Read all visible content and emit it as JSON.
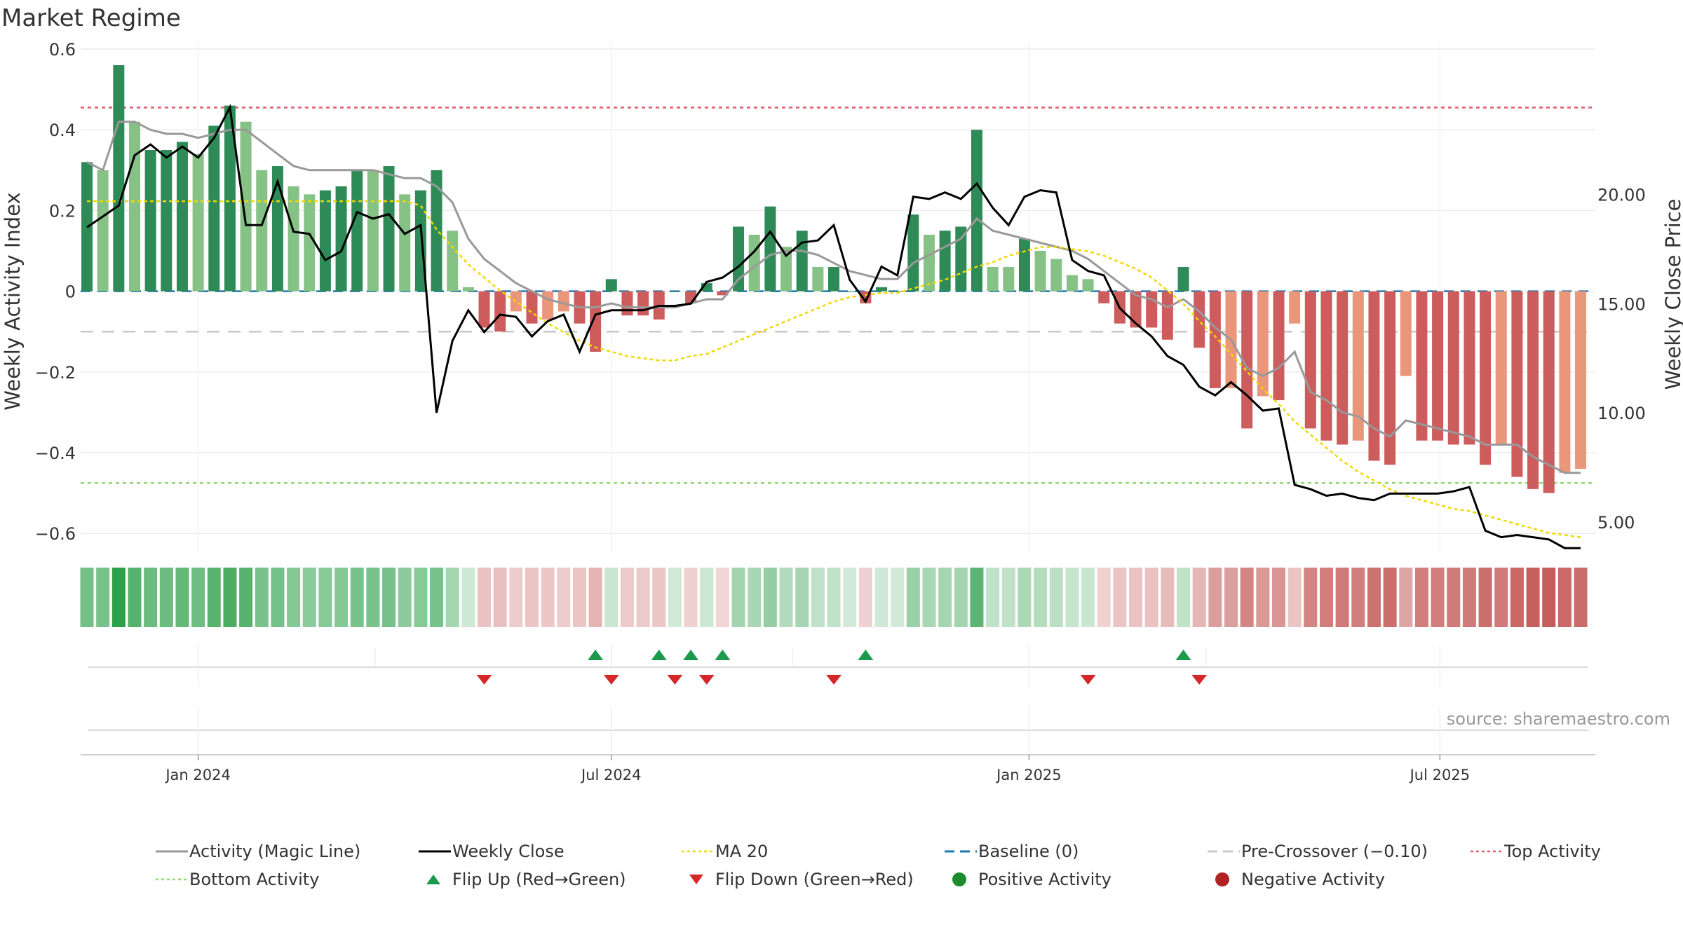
{
  "title": "Market Regime",
  "source_label": "source: sharemaestro.com",
  "colors": {
    "pos_strong": "#2e8b57",
    "pos_light": "#86c186",
    "neg_strong": "#cd5c5c",
    "neg_light": "#e9967a",
    "magic_line": "#999999",
    "weekly_close": "#000000",
    "ma20": "#f0d800",
    "baseline": "#1f77b4",
    "pre_crossover": "#c8c8c8",
    "top_activity": "#e15a6e",
    "bottom_activity": "#90d870",
    "flip_up": "#1a9a4a",
    "flip_down": "#d62728",
    "positive_dot": "#1e8c2e",
    "negative_dot": "#b22222"
  },
  "chart_data": {
    "type": "bar",
    "title": "Market Regime",
    "xlabel": "",
    "ylabel": "Weekly Activity Index",
    "y2label": "Weekly Close Price",
    "ylim": [
      -0.65,
      0.6
    ],
    "y2lim": [
      3.55,
      26.67
    ],
    "yticks": [
      -0.6,
      -0.4,
      -0.2,
      0,
      0.2,
      0.4,
      0.6
    ],
    "ytick_labels": [
      "−0.6",
      "−0.4",
      "−0.2",
      "0",
      "0.2",
      "0.4",
      "0.6"
    ],
    "y2ticks": [
      5,
      10,
      15,
      20
    ],
    "y2tick_labels": [
      "5.00",
      "10.00",
      "15.00",
      "20.00"
    ],
    "x_start": "2023-11-13",
    "x_step_days": 7,
    "xticks": [
      {
        "date": "2024-01-01",
        "label": "Jan 2024"
      },
      {
        "date": "2024-07-01",
        "label": "Jul 2024"
      },
      {
        "date": "2025-01-01",
        "label": "Jan 2025"
      },
      {
        "date": "2025-07-01",
        "label": "Jul 2025"
      }
    ],
    "reference_lines": {
      "top_activity": 0.455,
      "bottom_activity": -0.475,
      "pre_crossover": -0.1,
      "baseline": 0
    },
    "activity": [
      0.32,
      0.3,
      0.56,
      0.42,
      0.35,
      0.35,
      0.37,
      0.34,
      0.41,
      0.46,
      0.42,
      0.3,
      0.31,
      0.26,
      0.24,
      0.25,
      0.26,
      0.3,
      0.3,
      0.31,
      0.24,
      0.25,
      0.3,
      0.15,
      0.01,
      -0.09,
      -0.1,
      -0.05,
      -0.08,
      -0.07,
      -0.05,
      -0.08,
      -0.15,
      0.03,
      -0.06,
      -0.06,
      -0.07,
      0.0,
      -0.03,
      0.02,
      -0.01,
      0.16,
      0.14,
      0.21,
      0.11,
      0.15,
      0.06,
      0.06,
      0.0,
      -0.03,
      0.01,
      0.0,
      0.19,
      0.14,
      0.15,
      0.16,
      0.4,
      0.06,
      0.06,
      0.13,
      0.1,
      0.08,
      0.04,
      0.03,
      -0.03,
      -0.08,
      -0.09,
      -0.09,
      -0.12,
      0.06,
      -0.14,
      -0.24,
      -0.24,
      -0.34,
      -0.26,
      -0.27,
      -0.08,
      -0.34,
      -0.37,
      -0.38,
      -0.37,
      -0.42,
      -0.43,
      -0.21,
      -0.37,
      -0.37,
      -0.38,
      -0.38,
      -0.43,
      -0.38,
      -0.46,
      -0.49,
      -0.5,
      -0.45,
      -0.44
    ],
    "activity_strength": [
      "s",
      "l",
      "s",
      "l",
      "s",
      "s",
      "s",
      "l",
      "s",
      "s",
      "l",
      "l",
      "s",
      "l",
      "l",
      "s",
      "s",
      "s",
      "l",
      "s",
      "l",
      "s",
      "s",
      "l",
      "l",
      "s",
      "s",
      "l",
      "s",
      "l",
      "l",
      "s",
      "s",
      "s",
      "s",
      "s",
      "s",
      "s",
      "s",
      "s",
      "s",
      "s",
      "l",
      "s",
      "l",
      "s",
      "l",
      "s",
      "s",
      "s",
      "s",
      "s",
      "s",
      "l",
      "s",
      "s",
      "s",
      "l",
      "l",
      "s",
      "l",
      "l",
      "l",
      "l",
      "s",
      "s",
      "s",
      "s",
      "s",
      "s",
      "s",
      "s",
      "l",
      "s",
      "l",
      "s",
      "l",
      "s",
      "s",
      "s",
      "l",
      "s",
      "s",
      "l",
      "s",
      "s",
      "s",
      "s",
      "s",
      "l",
      "s",
      "s",
      "s",
      "l",
      "l"
    ],
    "magic_line": [
      0.32,
      0.3,
      0.42,
      0.42,
      0.4,
      0.39,
      0.39,
      0.38,
      0.39,
      0.4,
      0.4,
      0.37,
      0.34,
      0.31,
      0.3,
      0.3,
      0.3,
      0.3,
      0.3,
      0.29,
      0.28,
      0.28,
      0.26,
      0.22,
      0.13,
      0.08,
      0.05,
      0.02,
      0.0,
      -0.02,
      -0.03,
      -0.04,
      -0.04,
      -0.03,
      -0.04,
      -0.04,
      -0.04,
      -0.04,
      -0.03,
      -0.02,
      -0.02,
      0.03,
      0.06,
      0.09,
      0.1,
      0.1,
      0.09,
      0.07,
      0.05,
      0.04,
      0.03,
      0.03,
      0.07,
      0.09,
      0.11,
      0.13,
      0.18,
      0.15,
      0.14,
      0.13,
      0.12,
      0.11,
      0.1,
      0.08,
      0.05,
      0.02,
      -0.01,
      -0.02,
      -0.04,
      -0.02,
      -0.05,
      -0.09,
      -0.12,
      -0.19,
      -0.21,
      -0.19,
      -0.15,
      -0.25,
      -0.27,
      -0.3,
      -0.31,
      -0.34,
      -0.36,
      -0.32,
      -0.33,
      -0.34,
      -0.35,
      -0.36,
      -0.38,
      -0.38,
      -0.38,
      -0.41,
      -0.43,
      -0.45,
      -0.45
    ],
    "weekly_close": [
      18.5,
      19.0,
      19.5,
      21.8,
      22.3,
      21.7,
      22.2,
      21.7,
      22.6,
      24.0,
      18.6,
      18.6,
      20.6,
      18.3,
      18.2,
      17.0,
      17.4,
      19.2,
      18.9,
      19.1,
      18.2,
      18.6,
      10.0,
      13.3,
      14.7,
      13.7,
      14.5,
      14.4,
      13.5,
      14.2,
      14.5,
      12.8,
      14.5,
      14.7,
      14.7,
      14.7,
      14.9,
      14.9,
      15.0,
      16.0,
      16.2,
      16.7,
      17.4,
      18.3,
      17.2,
      17.8,
      17.9,
      18.6,
      16.1,
      15.1,
      16.7,
      16.3,
      19.9,
      19.8,
      20.1,
      19.8,
      20.5,
      19.4,
      18.6,
      19.9,
      20.2,
      20.1,
      17.0,
      16.5,
      16.3,
      14.8,
      14.1,
      13.5,
      12.6,
      12.2,
      11.2,
      10.8,
      11.4,
      10.8,
      10.1,
      10.2,
      6.7,
      6.5,
      6.2,
      6.3,
      6.1,
      6.0,
      6.3,
      6.3,
      6.3,
      6.3,
      6.4,
      6.6,
      4.6,
      4.3,
      4.4,
      4.3,
      4.2,
      3.8,
      3.8
    ],
    "ma20": [
      19.7,
      19.7,
      19.7,
      19.7,
      19.7,
      19.7,
      19.7,
      19.7,
      19.7,
      19.7,
      19.7,
      19.7,
      19.7,
      19.7,
      19.7,
      19.7,
      19.7,
      19.7,
      19.7,
      19.7,
      19.7,
      19.5,
      18.4,
      17.6,
      16.8,
      16.2,
      15.6,
      15.1,
      14.6,
      14.1,
      13.7,
      13.3,
      13.0,
      12.8,
      12.6,
      12.5,
      12.4,
      12.4,
      12.6,
      12.7,
      13.0,
      13.3,
      13.6,
      13.9,
      14.2,
      14.5,
      14.8,
      15.1,
      15.3,
      15.4,
      15.5,
      15.5,
      15.7,
      15.9,
      16.1,
      16.4,
      16.7,
      16.9,
      17.2,
      17.4,
      17.6,
      17.6,
      17.5,
      17.4,
      17.2,
      16.9,
      16.6,
      16.2,
      15.6,
      15.0,
      14.2,
      13.5,
      12.7,
      11.9,
      11.1,
      10.4,
      9.6,
      9.0,
      8.4,
      7.8,
      7.3,
      6.9,
      6.5,
      6.2,
      6.0,
      5.8,
      5.6,
      5.5,
      5.3,
      5.1,
      4.9,
      4.7,
      4.5,
      4.4,
      4.3
    ],
    "flip_up_weeks": [
      32,
      36,
      38,
      40,
      49,
      69
    ],
    "flip_down_weeks": [
      25,
      33,
      37,
      39,
      47,
      63,
      70
    ]
  },
  "legend": [
    {
      "label": "Activity (Magic Line)",
      "kind": "line-solid",
      "color": "#999999"
    },
    {
      "label": "Weekly Close",
      "kind": "line-solid",
      "color": "#000000"
    },
    {
      "label": "MA 20",
      "kind": "line-dotted",
      "color": "#f0d800"
    },
    {
      "label": "Baseline (0)",
      "kind": "line-dashed",
      "color": "#1f77b4"
    },
    {
      "label": "Pre-Crossover (−0.10)",
      "kind": "line-dashed",
      "color": "#c8c8c8"
    },
    {
      "label": "Top Activity",
      "kind": "line-dotted",
      "color": "#e15a6e"
    },
    {
      "label": "Bottom Activity",
      "kind": "line-dotted",
      "color": "#90d870"
    },
    {
      "label": "Flip Up (Red→Green)",
      "kind": "triangle-up",
      "color": "#1a9a4a"
    },
    {
      "label": "Flip Down (Green→Red)",
      "kind": "triangle-down",
      "color": "#d62728"
    },
    {
      "label": "Positive Activity",
      "kind": "dot",
      "color": "#1e8c2e"
    },
    {
      "label": "Negative Activity",
      "kind": "dot",
      "color": "#b22222"
    }
  ]
}
